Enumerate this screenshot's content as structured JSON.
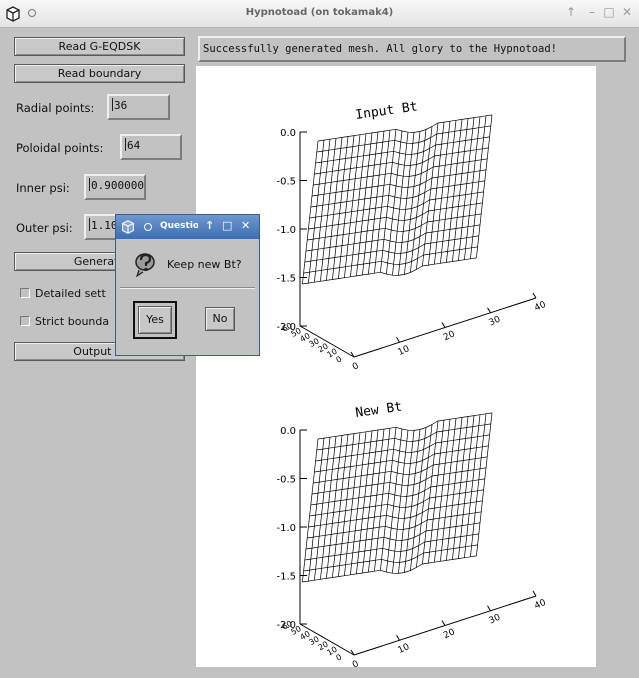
{
  "window": {
    "title": "Hypnotoad (on tokamak4)"
  },
  "controls": {
    "read_geqdsk": "Read G-EQDSK",
    "read_boundary": "Read boundary",
    "radial_label": "Radial points:",
    "radial_value": "36",
    "poloidal_label": "Poloidal points:",
    "poloidal_value": "64",
    "inner_psi_label": "Inner psi:",
    "inner_psi_value": "0.900000",
    "outer_psi_label": "Outer psi:",
    "outer_psi_value": "1.10",
    "generate": "Generate",
    "detailed_settings": "Detailed sett",
    "strict_boundary": "Strict bounda",
    "output_mesh": "Output m"
  },
  "status": {
    "text": "Successfully generated mesh. All glory to the Hypnotoad!"
  },
  "plots": [
    {
      "title": "Input Bt",
      "z_ticks": [
        "0.0",
        "-0.5",
        "-1.0",
        "-1.5",
        "-2.0"
      ],
      "x_ticks": [
        "0",
        "10",
        "20",
        "30",
        "40"
      ],
      "y_ticks": [
        "0",
        "10",
        "20",
        "30",
        "40",
        "50",
        "60"
      ]
    },
    {
      "title": "New Bt",
      "z_ticks": [
        "0.0",
        "-0.5",
        "-1.0",
        "-1.5",
        "-2.0"
      ],
      "x_ticks": [
        "0",
        "10",
        "20",
        "30",
        "40"
      ],
      "y_ticks": [
        "0",
        "10",
        "20",
        "30",
        "40",
        "50",
        "60"
      ]
    }
  ],
  "dialog": {
    "title": "Questio",
    "message": "Keep new Bt?",
    "yes": "Yes",
    "no": "No",
    "icon": "question-icon"
  }
}
